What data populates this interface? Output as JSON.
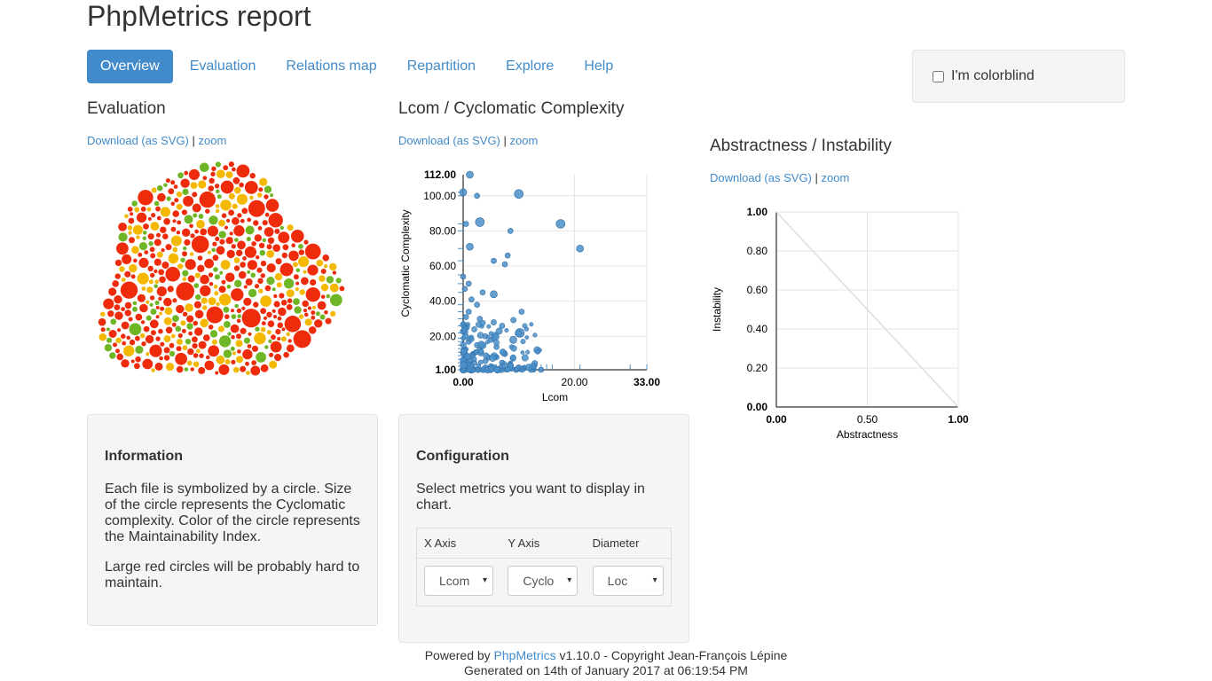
{
  "page_title": "PhpMetrics report",
  "nav": [
    "Overview",
    "Evaluation",
    "Relations map",
    "Repartition",
    "Explore",
    "Help"
  ],
  "colorblind_label": "I'm colorblind",
  "colors": {
    "accent": "#428bca",
    "red": "#ee2c0c",
    "orange": "#f5b800",
    "green": "#6fb626",
    "point": "#4a8fc9"
  },
  "evaluation": {
    "title": "Evaluation",
    "download_label": "Download (as SVG)",
    "separator": "|",
    "zoom_label": "zoom"
  },
  "lcom_chart": {
    "title": "Lcom / Cyclomatic Complexity",
    "download_label": "Download (as SVG)",
    "separator": "|",
    "zoom_label": "zoom"
  },
  "abs_chart": {
    "title": "Abstractness / Instability",
    "download_label": "Download (as SVG)",
    "separator": "|",
    "zoom_label": "zoom"
  },
  "info_panel": {
    "title": "Information",
    "text1": "Each file is symbolized by a circle. Size of the circle represents the Cyclomatic complexity. Color of the circle represents the Maintainability Index.",
    "text2": "Large red circles will be probably hard to maintain."
  },
  "config_panel": {
    "title": "Configuration",
    "text": "Select metrics you want to display in chart.",
    "headers": [
      "X Axis",
      "Y Axis",
      "Diameter"
    ],
    "selects": [
      "Lcom",
      "Cyclo",
      "Loc"
    ],
    "arrow": "▾"
  },
  "footer": {
    "powered_by": "Powered by",
    "link": "PhpMetrics",
    "copyright": "v1.10.0 - Copyright Jean-François Lépine",
    "generated": "Generated on 14th of January 2017 at 06:19:54 PM"
  },
  "chart_data": [
    {
      "type": "scatter",
      "title": "Lcom / Cyclomatic Complexity",
      "xlabel": "Lcom",
      "ylabel": "Cyclomatic Complexity",
      "x_ticks": [
        "0.00",
        "20.00",
        "33.00"
      ],
      "y_ticks": [
        "1.00",
        "20.00",
        "40.00",
        "60.00",
        "80.00",
        "100.00",
        "112.00"
      ],
      "xlim": [
        0,
        33
      ],
      "ylim": [
        1,
        112
      ],
      "points": [
        {
          "x": 1.2,
          "y": 112,
          "r": 4
        },
        {
          "x": 0,
          "y": 102,
          "r": 4
        },
        {
          "x": 2.5,
          "y": 100,
          "r": 3
        },
        {
          "x": 10,
          "y": 101,
          "r": 5
        },
        {
          "x": 3,
          "y": 85,
          "r": 5
        },
        {
          "x": 0.5,
          "y": 84,
          "r": 3
        },
        {
          "x": 17.5,
          "y": 84,
          "r": 5
        },
        {
          "x": 8.5,
          "y": 80,
          "r": 3
        },
        {
          "x": 1.2,
          "y": 71,
          "r": 4
        },
        {
          "x": 21,
          "y": 70,
          "r": 4
        },
        {
          "x": 8,
          "y": 66,
          "r": 3
        },
        {
          "x": 5.5,
          "y": 63,
          "r": 3
        },
        {
          "x": 7.5,
          "y": 61,
          "r": 3
        },
        {
          "x": 0,
          "y": 54,
          "r": 3
        },
        {
          "x": 1,
          "y": 50,
          "r": 3
        },
        {
          "x": 0.3,
          "y": 47,
          "r": 3
        },
        {
          "x": 3.5,
          "y": 45,
          "r": 3
        },
        {
          "x": 5.5,
          "y": 44,
          "r": 4
        },
        {
          "x": 1.5,
          "y": 41,
          "r": 3
        },
        {
          "x": 2.5,
          "y": 38,
          "r": 3
        },
        {
          "x": 10.5,
          "y": 34,
          "r": 3
        },
        {
          "x": 1,
          "y": 34,
          "r": 3
        },
        {
          "x": 0.5,
          "y": 31,
          "r": 3
        },
        {
          "x": 3,
          "y": 30,
          "r": 3
        },
        {
          "x": 5.5,
          "y": 28,
          "r": 3
        },
        {
          "x": 7,
          "y": 26,
          "r": 3
        },
        {
          "x": 10.2,
          "y": 22,
          "r": 5
        },
        {
          "x": 2,
          "y": 24,
          "r": 3
        },
        {
          "x": 4,
          "y": 20,
          "r": 3
        },
        {
          "x": 9,
          "y": 18,
          "r": 4
        },
        {
          "x": 5,
          "y": 18,
          "r": 3
        },
        {
          "x": 1,
          "y": 17,
          "r": 3
        },
        {
          "x": 6,
          "y": 14,
          "r": 3
        },
        {
          "x": 3,
          "y": 13,
          "r": 3
        },
        {
          "x": 7.5,
          "y": 10,
          "r": 3
        },
        {
          "x": 1.8,
          "y": 10,
          "r": 3
        },
        {
          "x": 4.5,
          "y": 8,
          "r": 3
        },
        {
          "x": 8.5,
          "y": 4,
          "r": 3
        },
        {
          "x": 14,
          "y": 1,
          "r": 3
        },
        {
          "x": 11,
          "y": 2,
          "r": 3
        },
        {
          "x": 9.5,
          "y": 1,
          "r": 3
        },
        {
          "x": 5,
          "y": 3,
          "r": 3
        },
        {
          "x": 2,
          "y": 5,
          "r": 3
        },
        {
          "x": 0.5,
          "y": 8,
          "r": 4
        },
        {
          "x": 0.5,
          "y": 3,
          "r": 5
        },
        {
          "x": 1.5,
          "y": 1,
          "r": 4
        },
        {
          "x": 3.5,
          "y": 1,
          "r": 3
        },
        {
          "x": 6.5,
          "y": 1,
          "r": 3
        },
        {
          "x": 0.2,
          "y": 12,
          "r": 3
        },
        {
          "x": 2.5,
          "y": 15,
          "r": 3
        },
        {
          "x": 4,
          "y": 6,
          "r": 3
        },
        {
          "x": 7,
          "y": 5,
          "r": 3
        }
      ]
    },
    {
      "type": "line",
      "title": "Abstractness / Instability",
      "xlabel": "Abstractness",
      "ylabel": "Instability",
      "x_ticks": [
        "0.00",
        "0.50",
        "1.00"
      ],
      "y_ticks": [
        "0.00",
        "0.20",
        "0.40",
        "0.60",
        "0.80",
        "1.00"
      ],
      "xlim": [
        0,
        1
      ],
      "ylim": [
        0,
        1
      ],
      "series": [
        {
          "values": [
            [
              0,
              1
            ],
            [
              1,
              0
            ]
          ]
        }
      ]
    }
  ]
}
